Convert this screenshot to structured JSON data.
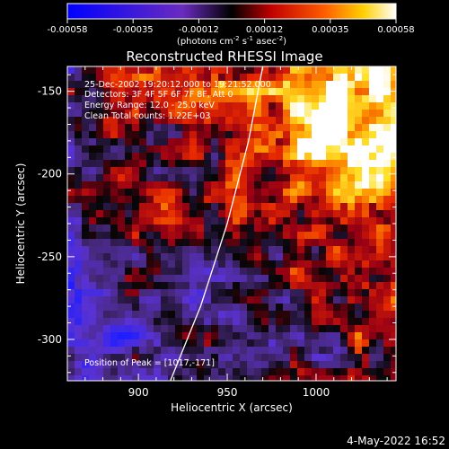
{
  "chart_data": {
    "type": "heatmap",
    "title": "Reconstructed RHESSI Image",
    "xlabel": "Heliocentric X (arcsec)",
    "ylabel": "Heliocentric Y (arcsec)",
    "xlim": [
      860,
      1045
    ],
    "ylim": [
      -325,
      -135
    ],
    "xticks": [
      900,
      950,
      1000
    ],
    "yticks": [
      -150,
      -200,
      -250,
      -300
    ],
    "colorbar": {
      "min": -0.00058,
      "max": 0.00058,
      "ticks": [
        "-0.00058",
        "-0.00035",
        "-0.00012",
        "0.00012",
        "0.00035",
        "0.00058"
      ],
      "unit_prefix": "(photons cm",
      "unit_sup1": "-2",
      "unit_mid": " s",
      "unit_sup2": "-1",
      "unit_mid2": " asec",
      "unit_sup3": "-2",
      "unit_suffix": ")"
    },
    "annotations": {
      "time_range": "25-Dec-2002 19:20:12.000 to 19:21:52.000",
      "detectors": "Detectors: 3F 4F 5F 6F 7F 8F, Att 0",
      "energy_range": "Energy Range: 12.0 - 25.0 keV",
      "clean": "Clean     Total counts: 1.22E+03",
      "peak": "Position of Peak = [1017,-171]"
    },
    "peak_position": [
      1017,
      -171
    ],
    "limb_curve": [
      [
        918,
        -325
      ],
      [
        935,
        -280
      ],
      [
        950,
        -230
      ],
      [
        962,
        -180
      ],
      [
        970,
        -135
      ]
    ]
  },
  "footer": {
    "timestamp": "4-May-2022 16:52"
  }
}
